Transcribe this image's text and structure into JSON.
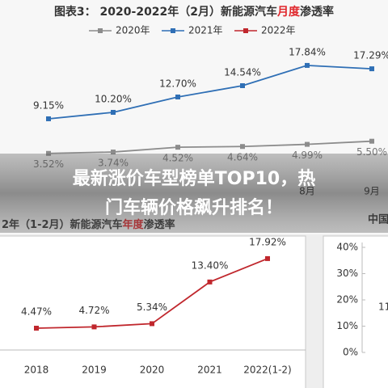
{
  "chart_data": [
    {
      "type": "line",
      "title": [
        "图表3： 2020-2022年（2月）新能源汽车",
        "月度",
        "渗透率"
      ],
      "title_highlight_color": "#e0262b",
      "categories": [
        null,
        null,
        null,
        null,
        "8月",
        "9月"
      ],
      "series": [
        {
          "name": "2020年",
          "color": "#8c8c8c",
          "values": [
            3.52,
            3.74,
            4.52,
            4.64,
            4.99,
            5.5
          ],
          "value_labels": [
            "3.52%",
            "3.74%",
            "4.52%",
            "4.64%",
            "4.99%",
            "5.50%"
          ]
        },
        {
          "name": "2021年",
          "color": "#2f6fb5",
          "values": [
            9.15,
            10.2,
            12.7,
            14.54,
            17.84,
            17.29
          ],
          "value_labels": [
            "9.15%",
            "10.20%",
            "12.70%",
            "14.54%",
            "17.84%",
            "17.29%"
          ]
        },
        {
          "name": "2022年",
          "color": "#c0272d",
          "values": [
            null,
            null,
            null,
            null,
            null,
            null
          ]
        }
      ]
    },
    {
      "type": "line",
      "title": [
        "2年（1-2月）新能源汽车",
        "年度",
        "渗透率"
      ],
      "title_highlight_color": "#e0262b",
      "categories": [
        "2018",
        "2019",
        "2020",
        "2021",
        "2022(1-2)"
      ],
      "series": [
        {
          "name": null,
          "color": "#c0272d",
          "values": [
            4.47,
            4.72,
            5.34,
            13.4,
            17.92
          ],
          "value_labels": [
            "4.47%",
            "4.72%",
            "5.34%",
            "13.40%",
            "17.92%"
          ]
        }
      ]
    },
    {
      "type": "axis-fragment",
      "title": "中国",
      "ylim": [
        0,
        40
      ],
      "yticks": [
        {
          "value": 0,
          "label": "0%"
        },
        {
          "value": 10,
          "label": "10%"
        },
        {
          "value": 20,
          "label": "20%"
        },
        {
          "value": 30,
          "label": "30%"
        },
        {
          "value": 40,
          "label": "40%"
        }
      ],
      "texts": [
        "11"
      ]
    }
  ],
  "overlay": {
    "lines": [
      "最新涨价车型榜单TOP10，热",
      "门车辆价格飙升排名！"
    ]
  }
}
